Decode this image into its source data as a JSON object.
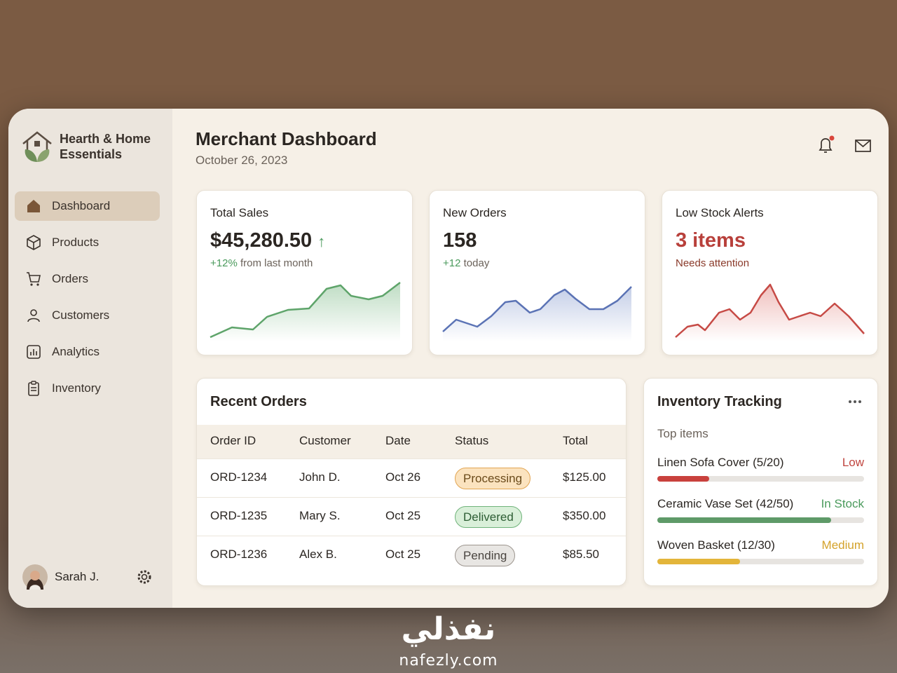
{
  "brand": {
    "name": "Hearth & Home Essentials"
  },
  "nav": {
    "items": [
      "Dashboard",
      "Products",
      "Orders",
      "Customers",
      "Analytics",
      "Inventory"
    ],
    "active": 0
  },
  "user": {
    "name": "Sarah J."
  },
  "header": {
    "title": "Merchant Dashboard",
    "date": "October 26, 2023"
  },
  "cards": [
    {
      "title": "Total Sales",
      "value": "$45,280.50",
      "change": "+12%",
      "note": "from last month"
    },
    {
      "title": "New Orders",
      "value": "158",
      "change": "+12",
      "note": "today"
    },
    {
      "title": "Low Stock Alerts",
      "value": "3 items",
      "note": "Needs attention"
    }
  ],
  "orders": {
    "title": "Recent Orders",
    "columns": [
      "Order ID",
      "Customer",
      "Date",
      "Status",
      "Total"
    ],
    "rows": [
      [
        "ORD-1234",
        "John D.",
        "Oct 26",
        "Processing",
        "$125.00"
      ],
      [
        "ORD-1235",
        "Mary S.",
        "Oct 25",
        "Delivered",
        "$350.00"
      ],
      [
        "ORD-1236",
        "Alex B.",
        "Oct 25",
        "Pending",
        "$85.50"
      ]
    ]
  },
  "inventory": {
    "title": "Inventory Tracking",
    "subtitle": "Top items",
    "items": [
      {
        "label": "Linen Sofa Cover (5/20)",
        "status": "Low",
        "stock": 5,
        "capacity": 20
      },
      {
        "label": "Ceramic Vase Set (42/50)",
        "status": "In Stock",
        "stock": 42,
        "capacity": 50
      },
      {
        "label": "Woven Basket (12/30)",
        "status": "Medium",
        "stock": 12,
        "capacity": 30
      }
    ]
  },
  "watermark": {
    "arabic": "نفذلي",
    "latin": "nafezly.com"
  }
}
